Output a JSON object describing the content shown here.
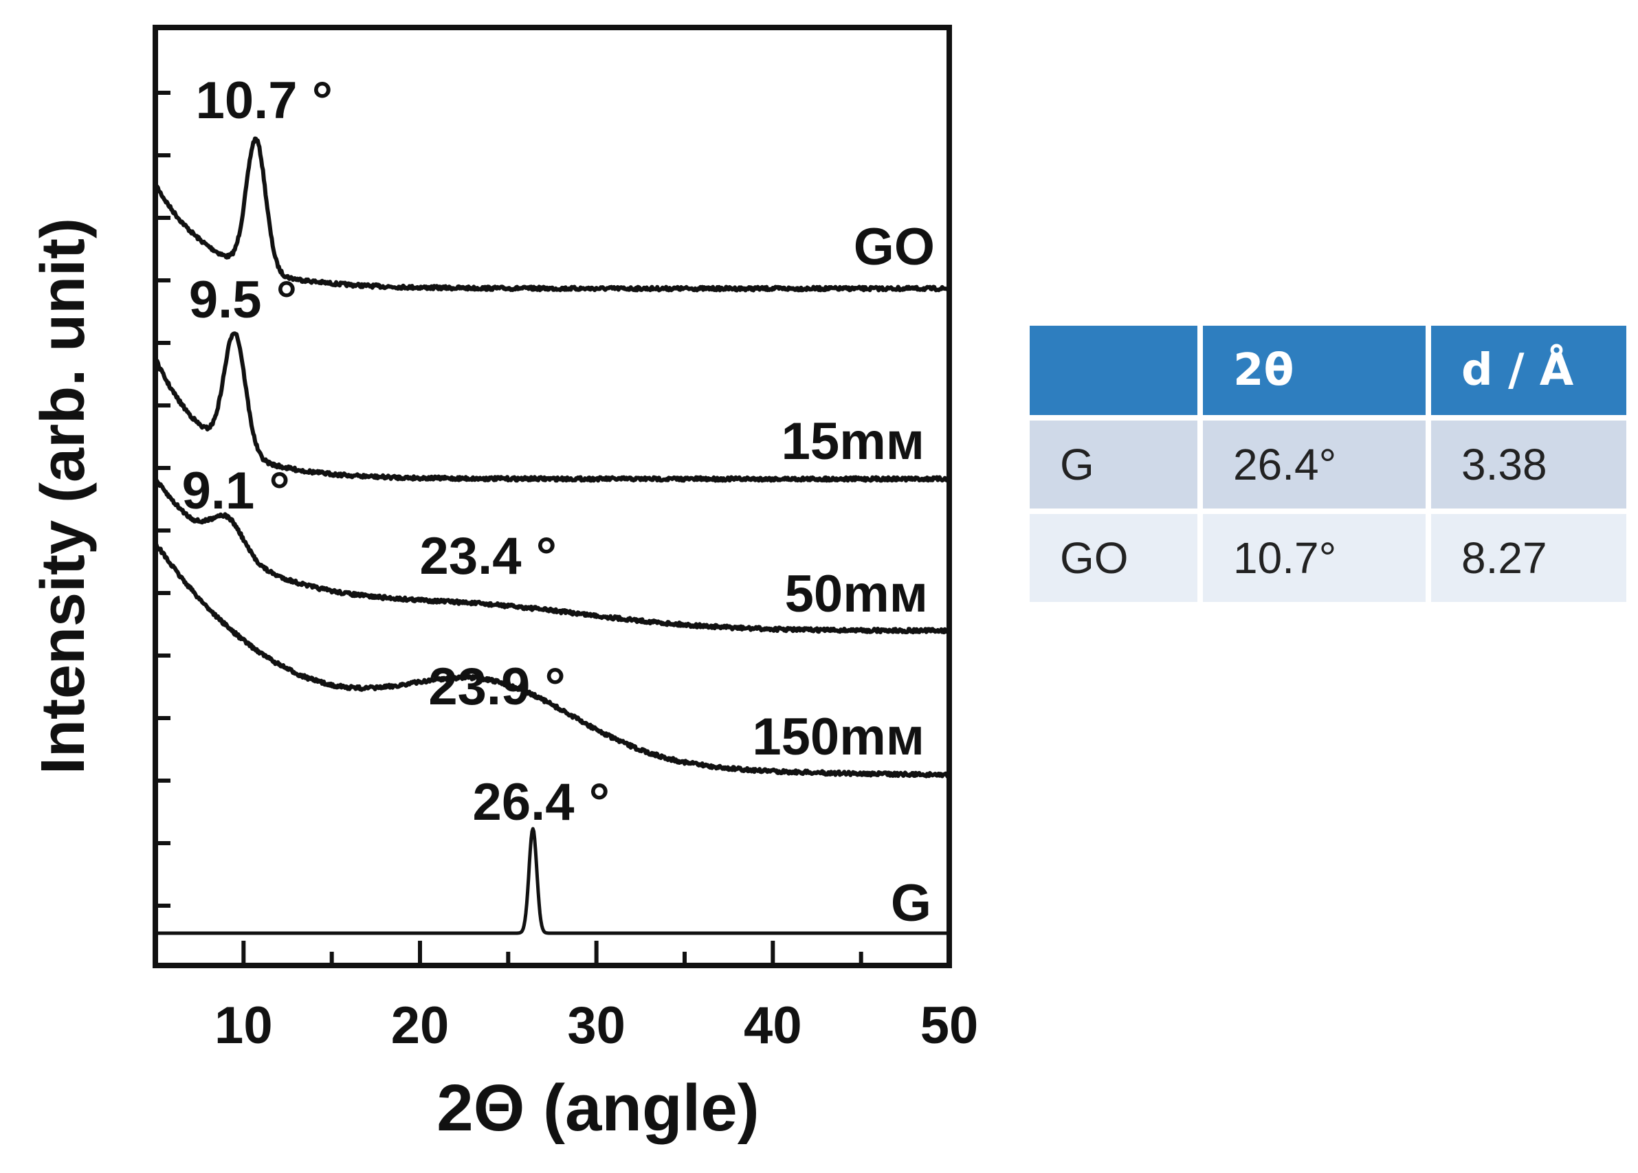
{
  "chart_data": {
    "type": "line",
    "title": "",
    "xlabel": "2Θ (angle)",
    "ylabel": "Intensity (arb. unit)",
    "xlim": [
      5,
      50
    ],
    "xticks": [
      "10",
      "20",
      "30",
      "40",
      "50"
    ],
    "series": [
      {
        "name": "GO",
        "peaks": [
          {
            "x": 10.7,
            "label": "10.7 °"
          }
        ]
      },
      {
        "name": "15mм",
        "peaks": [
          {
            "x": 9.5,
            "label": "9.5 °"
          }
        ]
      },
      {
        "name": "50mм",
        "peaks": [
          {
            "x": 9.1,
            "label": "9.1 °"
          },
          {
            "x": 23.4,
            "label": "23.4 °"
          }
        ]
      },
      {
        "name": "150mм",
        "peaks": [
          {
            "x": 23.9,
            "label": "23.9 °"
          }
        ]
      },
      {
        "name": "G",
        "peaks": [
          {
            "x": 26.4,
            "label": "26.4 °"
          }
        ]
      }
    ]
  },
  "table": {
    "headers": [
      "",
      "2θ",
      "d / Å"
    ],
    "rows": [
      [
        "G",
        "26.4°",
        "3.38"
      ],
      [
        "GO",
        "10.7°",
        "8.27"
      ]
    ]
  }
}
